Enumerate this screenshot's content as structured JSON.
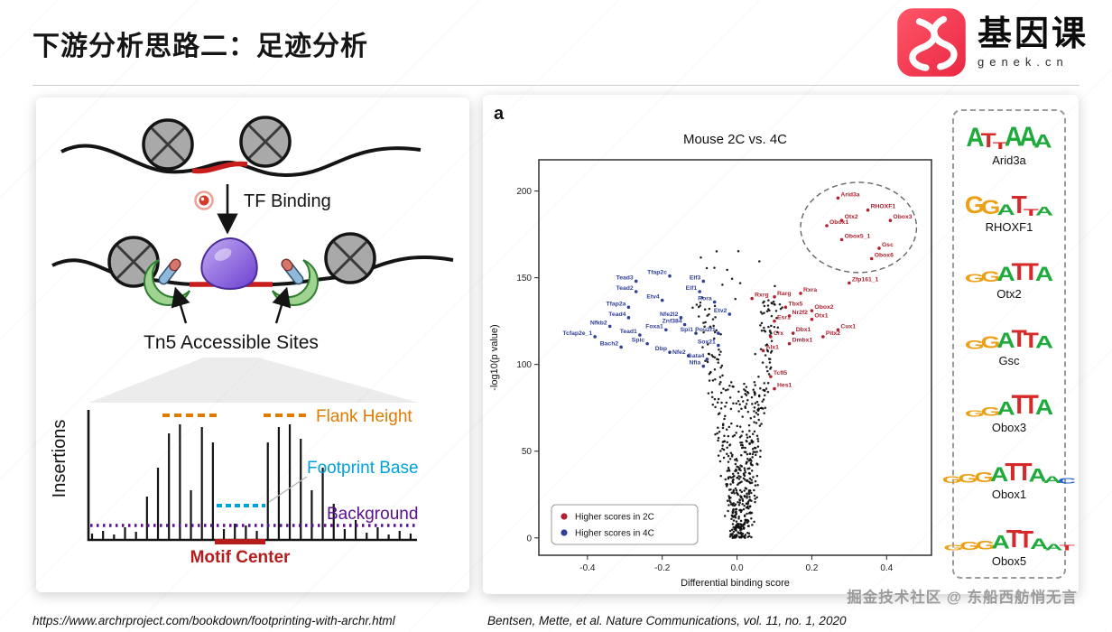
{
  "page": {
    "title": "下游分析思路二：足迹分析",
    "brand": {
      "name": "基因课",
      "domain": "genek.cn",
      "accent_color": "#ee2e4a"
    },
    "footer": {
      "source_url": "https://www.archrproject.com/bookdown/footprinting-with-archr.html",
      "citation": "Bentsen, Mette, et al. Nature Communications, vol. 11, no. 1, 2020",
      "watermark": "掘金技术社区 @ 东船西舫悄无言"
    }
  },
  "diagram": {
    "labels": {
      "tf_binding": "TF Binding",
      "tn5_sites": "Tn5 Accessible Sites",
      "y_axis": "Insertions"
    },
    "annotations": {
      "flank_height": {
        "label": "Flank Height",
        "color": "#e07b00"
      },
      "footprint_base": {
        "label": "Footprint Base",
        "color": "#00a3d8"
      },
      "background": {
        "label": "Background",
        "color": "#5a0f8f"
      },
      "motif_center": {
        "label": "Motif Center",
        "color": "#b51d1d"
      }
    },
    "spike_heights": [
      7,
      10,
      6,
      14,
      9,
      48,
      80,
      118,
      128,
      55,
      125,
      108,
      12,
      18,
      16,
      10,
      108,
      125,
      128,
      112,
      55,
      80,
      40,
      12,
      22,
      8,
      14,
      6,
      10,
      7
    ]
  },
  "chart_data": {
    "type": "scatter",
    "panel_label": "a",
    "title": "Mouse 2C vs. 4C",
    "xlabel": "Differential binding score",
    "ylabel": "-log10(p value)",
    "xlim": [
      -0.53,
      0.52
    ],
    "ylim": [
      -10,
      218
    ],
    "xticks": [
      -0.4,
      -0.2,
      0,
      0.2,
      0.4
    ],
    "yticks": [
      0,
      50,
      100,
      150,
      200
    ],
    "grid": false,
    "legend_position": "lower-left",
    "legend": [
      {
        "label": "Higher scores in 2C",
        "group": "2C",
        "color": "#b02030"
      },
      {
        "label": "Higher scores in 4C",
        "group": "4C",
        "color": "#30409a"
      }
    ],
    "colors": {
      "2C": "#b02030",
      "4C": "#30409a"
    },
    "highlight_ellipse": {
      "cx": 0.325,
      "cy": 179,
      "rx": 0.155,
      "ry": 26
    },
    "genes": [
      {
        "name": "Arid3a",
        "x": 0.27,
        "y": 196,
        "g": "2C"
      },
      {
        "name": "RHOXF1",
        "x": 0.35,
        "y": 189,
        "g": "2C"
      },
      {
        "name": "Otx2",
        "x": 0.28,
        "y": 183,
        "g": "2C"
      },
      {
        "name": "Obox3",
        "x": 0.41,
        "y": 183,
        "g": "2C"
      },
      {
        "name": "Obox1",
        "x": 0.24,
        "y": 180,
        "g": "2C"
      },
      {
        "name": "Obox5_1",
        "x": 0.28,
        "y": 172,
        "g": "2C"
      },
      {
        "name": "Gsc",
        "x": 0.38,
        "y": 167,
        "g": "2C"
      },
      {
        "name": "Obox6",
        "x": 0.36,
        "y": 161,
        "g": "2C"
      },
      {
        "name": "Zfp161_1",
        "x": 0.3,
        "y": 147,
        "g": "2C"
      },
      {
        "name": "Rxra",
        "x": 0.17,
        "y": 141,
        "g": "2C"
      },
      {
        "name": "Rarg",
        "x": 0.1,
        "y": 139,
        "g": "2C"
      },
      {
        "name": "Rxrg",
        "x": 0.04,
        "y": 138,
        "g": "2C"
      },
      {
        "name": "Tbx5",
        "x": 0.13,
        "y": 133,
        "g": "2C"
      },
      {
        "name": "Obox2",
        "x": 0.2,
        "y": 131,
        "g": "2C"
      },
      {
        "name": "Nr2f2",
        "x": 0.14,
        "y": 128,
        "g": "2C"
      },
      {
        "name": "Otx1",
        "x": 0.2,
        "y": 126,
        "g": "2C"
      },
      {
        "name": "Esr1",
        "x": 0.1,
        "y": 125,
        "g": "2C"
      },
      {
        "name": "Cux1",
        "x": 0.27,
        "y": 120,
        "g": "2C"
      },
      {
        "name": "Dbx1",
        "x": 0.15,
        "y": 118,
        "g": "2C"
      },
      {
        "name": "Pitx2",
        "x": 0.23,
        "y": 116,
        "g": "2C"
      },
      {
        "name": "Crx",
        "x": 0.09,
        "y": 116,
        "g": "2C"
      },
      {
        "name": "Dmbx1",
        "x": 0.14,
        "y": 112,
        "g": "2C"
      },
      {
        "name": "Alx1",
        "x": 0.07,
        "y": 108,
        "g": "2C"
      },
      {
        "name": "Tcfl5",
        "x": 0.09,
        "y": 93,
        "g": "2C"
      },
      {
        "name": "Hes1",
        "x": 0.1,
        "y": 86,
        "g": "2C"
      },
      {
        "name": "Tfap2c",
        "x": -0.18,
        "y": 151,
        "g": "4C"
      },
      {
        "name": "Tead3",
        "x": -0.27,
        "y": 148,
        "g": "4C"
      },
      {
        "name": "Elf3",
        "x": -0.09,
        "y": 148,
        "g": "4C"
      },
      {
        "name": "Tead2",
        "x": -0.27,
        "y": 142,
        "g": "4C"
      },
      {
        "name": "Elf1",
        "x": -0.1,
        "y": 142,
        "g": "4C"
      },
      {
        "name": "Etv4",
        "x": -0.2,
        "y": 137,
        "g": "4C"
      },
      {
        "name": "Rora",
        "x": -0.06,
        "y": 136,
        "g": "4C"
      },
      {
        "name": "Tfap2a",
        "x": -0.29,
        "y": 133,
        "g": "4C"
      },
      {
        "name": "Etv2",
        "x": -0.02,
        "y": 129,
        "g": "4C"
      },
      {
        "name": "Tead4",
        "x": -0.29,
        "y": 127,
        "g": "4C"
      },
      {
        "name": "Nfe2l2",
        "x": -0.15,
        "y": 127,
        "g": "4C"
      },
      {
        "name": "Znf384",
        "x": -0.14,
        "y": 123,
        "g": "4C"
      },
      {
        "name": "Nfkb2",
        "x": -0.34,
        "y": 122,
        "g": "4C"
      },
      {
        "name": "Foxa1",
        "x": -0.19,
        "y": 120,
        "g": "4C"
      },
      {
        "name": "Spi1",
        "x": -0.11,
        "y": 118,
        "g": "4C"
      },
      {
        "name": "Pou2f1",
        "x": -0.05,
        "y": 118,
        "g": "4C"
      },
      {
        "name": "Tead1",
        "x": -0.26,
        "y": 117,
        "g": "4C"
      },
      {
        "name": "Tcfap2e_1",
        "x": -0.38,
        "y": 116,
        "g": "4C"
      },
      {
        "name": "Spic",
        "x": -0.24,
        "y": 112,
        "g": "4C"
      },
      {
        "name": "Sox21",
        "x": -0.05,
        "y": 111,
        "g": "4C"
      },
      {
        "name": "Bach2",
        "x": -0.31,
        "y": 110,
        "g": "4C"
      },
      {
        "name": "Dbp",
        "x": -0.18,
        "y": 107,
        "g": "4C"
      },
      {
        "name": "Nfe2",
        "x": -0.13,
        "y": 105,
        "g": "4C"
      },
      {
        "name": "Gata4",
        "x": -0.08,
        "y": 103,
        "g": "4C"
      },
      {
        "name": "Nfia",
        "x": -0.09,
        "y": 99,
        "g": "4C"
      }
    ],
    "background_points": {
      "seed": 13,
      "blob": 330,
      "arms": 240,
      "high": 14
    }
  },
  "motif_panel": {
    "letter_colors": {
      "A": "#1faa3c",
      "C": "#1f5fd6",
      "G": "#eba117",
      "T": "#d62a2a"
    },
    "logos": [
      {
        "name": "Arid3a",
        "letters": [
          [
            "A",
            1.05
          ],
          [
            "T",
            0.8
          ],
          [
            "T",
            0.38
          ],
          [
            "A",
            1.1
          ],
          [
            "A",
            1.1
          ],
          [
            "A",
            0.75
          ]
        ]
      },
      {
        "name": "RHOXF1",
        "letters": [
          [
            "G",
            0.95
          ],
          [
            "G",
            0.8
          ],
          [
            "A",
            0.6
          ],
          [
            "T",
            1.0
          ],
          [
            "T",
            0.4
          ],
          [
            "A",
            0.5
          ]
        ]
      },
      {
        "name": "Otx2",
        "letters": [
          [
            "G",
            0.45
          ],
          [
            "G",
            0.6
          ],
          [
            "A",
            0.8
          ],
          [
            "T",
            0.95
          ],
          [
            "T",
            0.95
          ],
          [
            "A",
            0.8
          ]
        ]
      },
      {
        "name": "Gsc",
        "letters": [
          [
            "G",
            0.5
          ],
          [
            "G",
            0.65
          ],
          [
            "A",
            0.85
          ],
          [
            "T",
            0.95
          ],
          [
            "T",
            0.85
          ],
          [
            "A",
            0.7
          ]
        ]
      },
      {
        "name": "Obox3",
        "letters": [
          [
            "G",
            0.35
          ],
          [
            "G",
            0.5
          ],
          [
            "A",
            0.75
          ],
          [
            "T",
            1.05
          ],
          [
            "T",
            1.05
          ],
          [
            "A",
            0.85
          ]
        ]
      },
      {
        "name": "Obox1",
        "letters": [
          [
            "G",
            0.4
          ],
          [
            "G",
            0.5
          ],
          [
            "G",
            0.55
          ],
          [
            "A",
            0.8
          ],
          [
            "T",
            1.0
          ],
          [
            "T",
            1.0
          ],
          [
            "A",
            0.75
          ],
          [
            "A",
            0.4
          ],
          [
            "C",
            0.3
          ]
        ]
      },
      {
        "name": "Obox5",
        "letters": [
          [
            "G",
            0.3
          ],
          [
            "G",
            0.45
          ],
          [
            "G",
            0.5
          ],
          [
            "A",
            0.75
          ],
          [
            "T",
            1.0
          ],
          [
            "T",
            0.95
          ],
          [
            "A",
            0.6
          ],
          [
            "A",
            0.35
          ],
          [
            "T",
            0.3
          ]
        ]
      }
    ]
  }
}
